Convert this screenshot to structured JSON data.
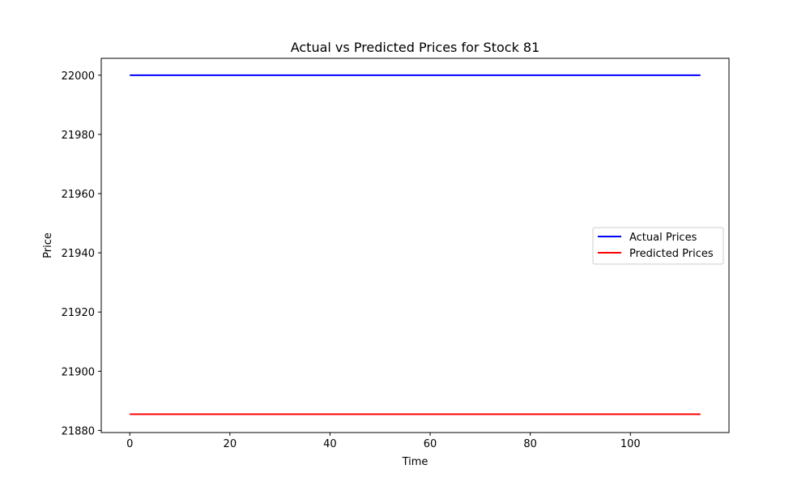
{
  "chart_data": {
    "type": "line",
    "title": "Actual vs Predicted Prices for Stock 81",
    "xlabel": "Time",
    "ylabel": "Price",
    "xlim": [
      -5.7,
      119.7
    ],
    "ylim": [
      21879.3,
      22005.7
    ],
    "xticks": [
      0,
      20,
      40,
      60,
      80,
      100
    ],
    "yticks": [
      21880,
      21900,
      21920,
      21940,
      21960,
      21980,
      22000
    ],
    "grid": false,
    "legend_position": "center-right",
    "series": [
      {
        "name": "Actual Prices",
        "color": "#0000ff",
        "x": [
          0,
          114
        ],
        "y": [
          22000,
          22000
        ]
      },
      {
        "name": "Predicted Prices",
        "color": "#ff0000",
        "x": [
          0,
          114
        ],
        "y": [
          21885.5,
          21885.5
        ]
      }
    ]
  }
}
